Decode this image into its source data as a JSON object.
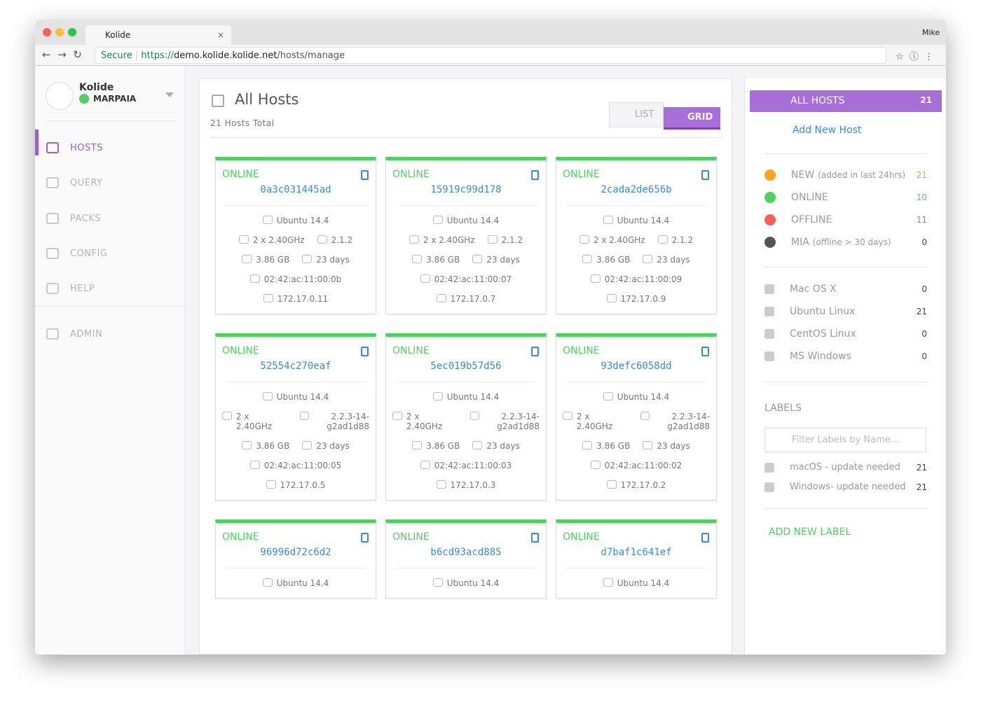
{
  "browser": {
    "tab_title": "Kolide",
    "user": "Mike",
    "secure": "Secure",
    "url_scheme": "https://",
    "url_host": "demo.kolide.kolide.net",
    "url_path": "/hosts/manage"
  },
  "sidebar": {
    "org": "Kolide",
    "status": "MARPAIA",
    "nav": [
      "HOSTS",
      "QUERY",
      "PACKS",
      "CONFIG",
      "HELP",
      "ADMIN"
    ]
  },
  "main": {
    "title": "All Hosts",
    "subtitle": "21 Hosts Total",
    "toggle": [
      "LIST",
      "GRID"
    ],
    "hosts": [
      {
        "status": "ONLINE",
        "name": "0a3c031445ad",
        "os": "Ubuntu 14.4",
        "cpu": "2 x 2.40GHz",
        "version": "2.1.2",
        "memory": "3.86 GB",
        "uptime": "23 days",
        "mac": "02:42:ac:11:00:0b",
        "ip": "172.17.0.11"
      },
      {
        "status": "ONLINE",
        "name": "15919c99d178",
        "os": "Ubuntu 14.4",
        "cpu": "2 x 2.40GHz",
        "version": "2.1.2",
        "memory": "3.86 GB",
        "uptime": "23 days",
        "mac": "02:42:ac:11:00:07",
        "ip": "172.17.0.7"
      },
      {
        "status": "ONLINE",
        "name": "2cada2de656b",
        "os": "Ubuntu 14.4",
        "cpu": "2 x 2.40GHz",
        "version": "2.1.2",
        "memory": "3.86 GB",
        "uptime": "23 days",
        "mac": "02:42:ac:11:00:09",
        "ip": "172.17.0.9"
      },
      {
        "status": "ONLINE",
        "name": "52554c270eaf",
        "os": "Ubuntu 14.4",
        "cpu": "2 x 2.40GHz",
        "version": "2.2.3-14-g2ad1d88",
        "memory": "3.86 GB",
        "uptime": "23 days",
        "mac": "02:42:ac:11:00:05",
        "ip": "172.17.0.5"
      },
      {
        "status": "ONLINE",
        "name": "5ec019b57d56",
        "os": "Ubuntu 14.4",
        "cpu": "2 x 2.40GHz",
        "version": "2.2.3-14-g2ad1d88",
        "memory": "3.86 GB",
        "uptime": "23 days",
        "mac": "02:42:ac:11:00:03",
        "ip": "172.17.0.3"
      },
      {
        "status": "ONLINE",
        "name": "93defc6058dd",
        "os": "Ubuntu 14.4",
        "cpu": "2 x 2.40GHz",
        "version": "2.2.3-14-g2ad1d88",
        "memory": "3.86 GB",
        "uptime": "23 days",
        "mac": "02:42:ac:11:00:02",
        "ip": "172.17.0.2"
      },
      {
        "status": "ONLINE",
        "name": "96996d72c6d2",
        "os": "Ubuntu 14.4"
      },
      {
        "status": "ONLINE",
        "name": "b6cd93acd885",
        "os": "Ubuntu 14.4"
      },
      {
        "status": "ONLINE",
        "name": "d7baf1c641ef",
        "os": "Ubuntu 14.4"
      }
    ]
  },
  "panel": {
    "all_hosts": {
      "label": "ALL HOSTS",
      "count": 21
    },
    "add_host": "Add New Host",
    "statuses": [
      {
        "label": "NEW",
        "note": "(added in last 24hrs)",
        "count": 21
      },
      {
        "label": "ONLINE",
        "count": 10
      },
      {
        "label": "OFFLINE",
        "count": 11
      },
      {
        "label": "MIA",
        "note": "(offline > 30 days)",
        "count": 0
      }
    ],
    "platforms": [
      {
        "label": "Mac OS X",
        "count": 0
      },
      {
        "label": "Ubuntu Linux",
        "count": 21
      },
      {
        "label": "CentOS Linux",
        "count": 0
      },
      {
        "label": "MS Windows",
        "count": 0
      }
    ],
    "labels_heading": "LABELS",
    "search_placeholder": "Filter Labels by Name...",
    "labels": [
      {
        "label": "macOS - update needed",
        "count": 21
      },
      {
        "label": "Windows- update needed",
        "count": 21
      }
    ],
    "add_label": "ADD NEW LABEL"
  }
}
